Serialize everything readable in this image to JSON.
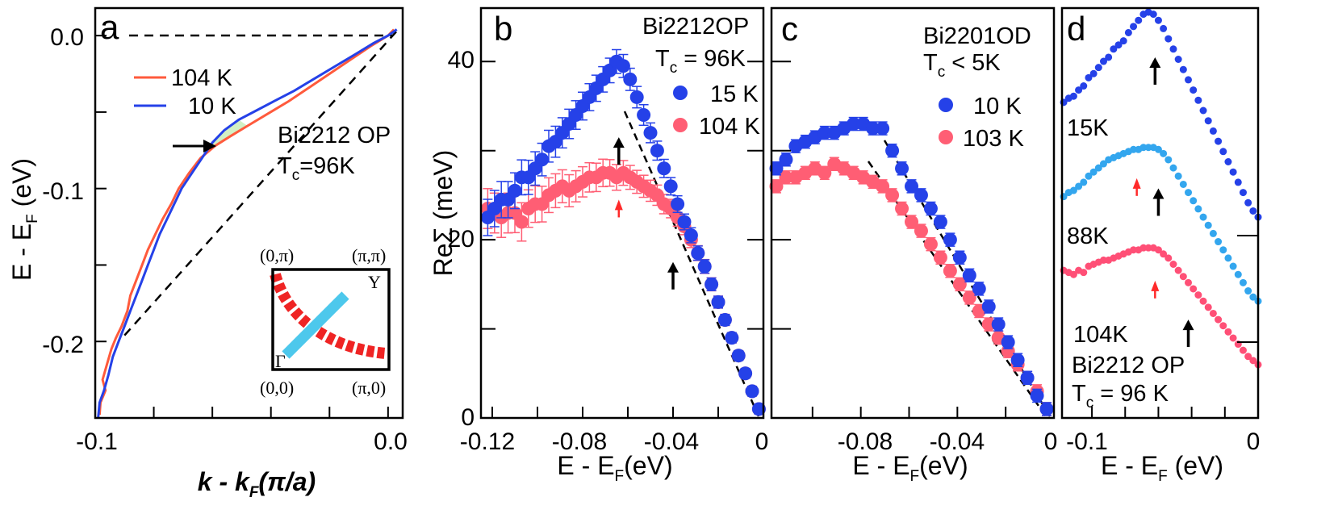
{
  "colors": {
    "blue": "#2541e8",
    "red": "#ff5e74",
    "red_line": "#ff5a3c",
    "light_blue": "#33a6ee",
    "pink": "#ff4f76",
    "inset_cyan": "#4dc8ec",
    "inset_red": "#ef2424",
    "shade": "#d2f0c4"
  },
  "chart_data": [
    {
      "panel": "a",
      "type": "line",
      "ylabel": "E - E",
      "ylabel_sub": "F",
      "ylabel_unit": " (eV)",
      "xlabel": "k - k",
      "xlabel_sub": "F",
      "xlabel_unit": "(π/a)",
      "xlim": [
        -0.1,
        0.005
      ],
      "ylim": [
        -0.25,
        0.018
      ],
      "xticks": [
        "-0.1",
        "0.0"
      ],
      "yticks": [
        "0.0",
        "-0.1",
        "-0.2"
      ],
      "annotation_line1": "Bi2212 OP",
      "annotation_tc": "T",
      "annotation_tc_sub": "c",
      "annotation_tc_val": "=96K",
      "series": [
        {
          "name": "104 K",
          "color": "#ff5a3c",
          "points": [
            [
              -0.0985,
              -0.248
            ],
            [
              -0.0982,
              -0.24
            ],
            [
              -0.0965,
              -0.232
            ],
            [
              -0.0975,
              -0.225
            ],
            [
              -0.096,
              -0.215
            ],
            [
              -0.0945,
              -0.205
            ],
            [
              -0.093,
              -0.198
            ],
            [
              -0.091,
              -0.19
            ],
            [
              -0.089,
              -0.18
            ],
            [
              -0.088,
              -0.17
            ],
            [
              -0.086,
              -0.16
            ],
            [
              -0.084,
              -0.15
            ],
            [
              -0.082,
              -0.14
            ],
            [
              -0.0795,
              -0.13
            ],
            [
              -0.077,
              -0.12
            ],
            [
              -0.074,
              -0.11
            ],
            [
              -0.0715,
              -0.1
            ],
            [
              -0.068,
              -0.09
            ],
            [
              -0.064,
              -0.08
            ],
            [
              -0.059,
              -0.072
            ],
            [
              -0.054,
              -0.066
            ],
            [
              -0.048,
              -0.059
            ],
            [
              -0.041,
              -0.051
            ],
            [
              -0.034,
              -0.043
            ],
            [
              -0.027,
              -0.034
            ],
            [
              -0.02,
              -0.025
            ],
            [
              -0.013,
              -0.016
            ],
            [
              -0.006,
              -0.007
            ],
            [
              0.0,
              0.0
            ],
            [
              0.002,
              0.004
            ]
          ]
        },
        {
          "name": "10 K",
          "color": "#2541e8",
          "points": [
            [
              -0.099,
              -0.25
            ],
            [
              -0.0985,
              -0.24
            ],
            [
              -0.097,
              -0.232
            ],
            [
              -0.0955,
              -0.222
            ],
            [
              -0.094,
              -0.21
            ],
            [
              -0.092,
              -0.2
            ],
            [
              -0.09,
              -0.19
            ],
            [
              -0.088,
              -0.18
            ],
            [
              -0.086,
              -0.17
            ],
            [
              -0.084,
              -0.16
            ],
            [
              -0.082,
              -0.15
            ],
            [
              -0.08,
              -0.14
            ],
            [
              -0.078,
              -0.13
            ],
            [
              -0.0755,
              -0.12
            ],
            [
              -0.073,
              -0.11
            ],
            [
              -0.0705,
              -0.1
            ],
            [
              -0.067,
              -0.09
            ],
            [
              -0.0635,
              -0.08
            ],
            [
              -0.06,
              -0.07
            ],
            [
              -0.056,
              -0.062
            ],
            [
              -0.051,
              -0.055
            ],
            [
              -0.045,
              -0.049
            ],
            [
              -0.039,
              -0.043
            ],
            [
              -0.032,
              -0.036
            ],
            [
              -0.025,
              -0.028
            ],
            [
              -0.018,
              -0.02
            ],
            [
              -0.011,
              -0.012
            ],
            [
              -0.005,
              -0.005
            ],
            [
              0.0,
              0.0
            ],
            [
              0.003,
              0.004
            ]
          ]
        }
      ],
      "bare_band": [
        [
          -0.09,
          -0.196
        ],
        [
          0.003,
          0.003
        ]
      ]
    },
    {
      "panel": "b",
      "type": "scatter",
      "ylabel": "ReΣ (meV)",
      "xlabel": "E - E",
      "xlabel_sub": "F",
      "xlabel_unit": "(eV)",
      "xlim": [
        -0.125,
        0.0
      ],
      "ylim": [
        0,
        46
      ],
      "xticks": [
        "-0.12",
        "-0.08",
        "-0.04",
        "0"
      ],
      "yticks": [
        "0",
        "20",
        "40"
      ],
      "annotation_line1": "Bi2212OP",
      "annotation_tc": "T",
      "annotation_tc_sub": "c",
      "annotation_tc_val": " = 96K",
      "series": [
        {
          "name": "15 K",
          "color": "#2541e8",
          "x": [
            -0.122,
            -0.119,
            -0.116,
            -0.113,
            -0.11,
            -0.107,
            -0.104,
            -0.101,
            -0.098,
            -0.095,
            -0.092,
            -0.089,
            -0.086,
            -0.083,
            -0.08,
            -0.077,
            -0.074,
            -0.071,
            -0.068,
            -0.065,
            -0.062,
            -0.059,
            -0.056,
            -0.053,
            -0.05,
            -0.047,
            -0.044,
            -0.041,
            -0.038,
            -0.035,
            -0.032,
            -0.029,
            -0.026,
            -0.023,
            -0.02,
            -0.017,
            -0.014,
            -0.011,
            -0.008,
            -0.005,
            -0.002
          ],
          "y": [
            22.5,
            23.5,
            24.5,
            24.5,
            25.5,
            27,
            27,
            28,
            29,
            30.5,
            31,
            32,
            33,
            34,
            35,
            36,
            37,
            38,
            39,
            40,
            39.5,
            38,
            36,
            34,
            32,
            30,
            28,
            26,
            24,
            22,
            20.5,
            18.5,
            17,
            15,
            13,
            11,
            9,
            7,
            5,
            3,
            1
          ]
        },
        {
          "name": "104 K",
          "color": "#ff5e74",
          "x": [
            -0.122,
            -0.119,
            -0.116,
            -0.113,
            -0.11,
            -0.107,
            -0.104,
            -0.101,
            -0.098,
            -0.095,
            -0.092,
            -0.089,
            -0.086,
            -0.083,
            -0.08,
            -0.077,
            -0.074,
            -0.071,
            -0.068,
            -0.065,
            -0.062,
            -0.059,
            -0.056,
            -0.053,
            -0.05,
            -0.047,
            -0.044,
            -0.041,
            -0.038,
            -0.035,
            -0.032,
            -0.029,
            -0.026,
            -0.023,
            -0.02,
            -0.017,
            -0.014,
            -0.011,
            -0.008,
            -0.005,
            -0.002
          ],
          "y": [
            23.5,
            23,
            22.5,
            23,
            23,
            22,
            23.5,
            24,
            24,
            25,
            25.5,
            26,
            25.5,
            26,
            26.5,
            27,
            27,
            27.5,
            27.5,
            27,
            27.5,
            27,
            26.5,
            26,
            25.5,
            25,
            24,
            23.5,
            22.5,
            21.5,
            20,
            18.5,
            17,
            15,
            13,
            11,
            9,
            7,
            5,
            3,
            1
          ]
        }
      ],
      "arrows": [
        {
          "x": -0.064,
          "y": 31.5,
          "color": "black"
        },
        {
          "x": -0.064,
          "y": 24.5,
          "color": "red"
        },
        {
          "x": -0.04,
          "y": 17.5,
          "color": "black"
        }
      ]
    },
    {
      "panel": "c",
      "type": "scatter",
      "xlabel": "E - E",
      "xlabel_sub": "F",
      "xlabel_unit": "(eV)",
      "xlim": [
        -0.117,
        0.0
      ],
      "ylim": [
        0,
        46
      ],
      "xticks": [
        "-0.08",
        "-0.04",
        "0"
      ],
      "annotation_line1": "Bi2201OD",
      "annotation_tc": "T",
      "annotation_tc_sub": "c",
      "annotation_tc_val": " < 5K",
      "series": [
        {
          "name": "10 K",
          "color": "#2541e8",
          "x": [
            -0.115,
            -0.111,
            -0.107,
            -0.103,
            -0.099,
            -0.095,
            -0.091,
            -0.087,
            -0.083,
            -0.079,
            -0.075,
            -0.071,
            -0.067,
            -0.063,
            -0.059,
            -0.055,
            -0.051,
            -0.047,
            -0.043,
            -0.039,
            -0.035,
            -0.031,
            -0.027,
            -0.023,
            -0.019,
            -0.015,
            -0.011,
            -0.007,
            -0.003
          ],
          "y": [
            28,
            29,
            30.5,
            31,
            31.5,
            32,
            32,
            32.5,
            33,
            33,
            32.5,
            32.5,
            30,
            28,
            26,
            25,
            23.5,
            22,
            20,
            18,
            16,
            14.5,
            12.5,
            10.5,
            8.5,
            6.5,
            4.5,
            2.5,
            1
          ]
        },
        {
          "name": "103 K",
          "color": "#ff5e74",
          "x": [
            -0.115,
            -0.111,
            -0.107,
            -0.103,
            -0.099,
            -0.095,
            -0.091,
            -0.087,
            -0.083,
            -0.079,
            -0.075,
            -0.071,
            -0.067,
            -0.063,
            -0.059,
            -0.055,
            -0.051,
            -0.047,
            -0.043,
            -0.039,
            -0.035,
            -0.031,
            -0.027,
            -0.023,
            -0.019,
            -0.015,
            -0.011,
            -0.007,
            -0.003
          ],
          "y": [
            26,
            27,
            27,
            27.5,
            28,
            27.5,
            28.5,
            28,
            27.5,
            27,
            26.5,
            26,
            25,
            23.5,
            22,
            21,
            19.5,
            18,
            16.5,
            15,
            13.5,
            12,
            10.5,
            9,
            7.5,
            6,
            4.5,
            3,
            1
          ]
        }
      ]
    },
    {
      "panel": "d",
      "type": "scatter",
      "xlabel": "E - E",
      "xlabel_sub": "F",
      "xlabel_unit": " (eV)",
      "xlim": [
        -0.118,
        0.0
      ],
      "ylim": [
        0,
        1
      ],
      "xticks": [
        "-0.1",
        "0"
      ],
      "annotation_line1": "Bi2212 OP",
      "annotation_tc": "T",
      "annotation_tc_sub": "c",
      "annotation_tc_val": " = 96 K",
      "series": [
        {
          "name": "15K",
          "color": "#2541e8",
          "x": [
            -0.117,
            -0.114,
            -0.111,
            -0.108,
            -0.105,
            -0.102,
            -0.099,
            -0.096,
            -0.093,
            -0.09,
            -0.087,
            -0.084,
            -0.081,
            -0.078,
            -0.075,
            -0.072,
            -0.069,
            -0.066,
            -0.063,
            -0.06,
            -0.057,
            -0.054,
            -0.051,
            -0.048,
            -0.045,
            -0.042,
            -0.039,
            -0.036,
            -0.033,
            -0.03,
            -0.027,
            -0.024,
            -0.021,
            -0.018,
            -0.015,
            -0.012,
            -0.009,
            -0.006,
            -0.003,
            0.0
          ],
          "y": [
            0.77,
            0.78,
            0.785,
            0.8,
            0.81,
            0.83,
            0.84,
            0.855,
            0.87,
            0.88,
            0.9,
            0.91,
            0.92,
            0.94,
            0.955,
            0.97,
            0.985,
            0.99,
            0.985,
            0.97,
            0.95,
            0.925,
            0.9,
            0.875,
            0.85,
            0.825,
            0.8,
            0.775,
            0.75,
            0.725,
            0.7,
            0.675,
            0.65,
            0.625,
            0.6,
            0.575,
            0.55,
            0.525,
            0.505,
            0.49
          ]
        },
        {
          "name": "88K",
          "color": "#33a6ee",
          "x": [
            -0.117,
            -0.114,
            -0.111,
            -0.108,
            -0.105,
            -0.102,
            -0.099,
            -0.096,
            -0.093,
            -0.09,
            -0.087,
            -0.084,
            -0.081,
            -0.078,
            -0.075,
            -0.072,
            -0.069,
            -0.066,
            -0.063,
            -0.06,
            -0.057,
            -0.054,
            -0.051,
            -0.048,
            -0.045,
            -0.042,
            -0.039,
            -0.036,
            -0.033,
            -0.03,
            -0.027,
            -0.024,
            -0.021,
            -0.018,
            -0.015,
            -0.012,
            -0.009,
            -0.006,
            -0.003,
            0.0
          ],
          "y": [
            0.54,
            0.55,
            0.555,
            0.565,
            0.575,
            0.59,
            0.6,
            0.61,
            0.62,
            0.63,
            0.635,
            0.64,
            0.645,
            0.65,
            0.655,
            0.655,
            0.66,
            0.66,
            0.66,
            0.655,
            0.645,
            0.63,
            0.61,
            0.59,
            0.57,
            0.55,
            0.53,
            0.51,
            0.49,
            0.47,
            0.45,
            0.43,
            0.41,
            0.39,
            0.37,
            0.35,
            0.33,
            0.31,
            0.295,
            0.285
          ]
        },
        {
          "name": "104K",
          "color": "#ff4f76",
          "x": [
            -0.117,
            -0.114,
            -0.111,
            -0.108,
            -0.105,
            -0.102,
            -0.099,
            -0.096,
            -0.093,
            -0.09,
            -0.087,
            -0.084,
            -0.081,
            -0.078,
            -0.075,
            -0.072,
            -0.069,
            -0.066,
            -0.063,
            -0.06,
            -0.057,
            -0.054,
            -0.051,
            -0.048,
            -0.045,
            -0.042,
            -0.039,
            -0.036,
            -0.033,
            -0.03,
            -0.027,
            -0.024,
            -0.021,
            -0.018,
            -0.015,
            -0.012,
            -0.009,
            -0.006,
            -0.003,
            0.0
          ],
          "y": [
            0.36,
            0.355,
            0.35,
            0.36,
            0.355,
            0.37,
            0.375,
            0.38,
            0.385,
            0.385,
            0.39,
            0.395,
            0.4,
            0.405,
            0.41,
            0.41,
            0.415,
            0.415,
            0.415,
            0.41,
            0.4,
            0.39,
            0.375,
            0.36,
            0.345,
            0.33,
            0.315,
            0.3,
            0.285,
            0.27,
            0.255,
            0.24,
            0.225,
            0.21,
            0.195,
            0.18,
            0.165,
            0.15,
            0.14,
            0.13
          ]
        }
      ],
      "arrows": [
        {
          "x": -0.062,
          "y": 0.88,
          "color": "black"
        },
        {
          "x": -0.073,
          "y": 0.585,
          "color": "red"
        },
        {
          "x": -0.06,
          "y": 0.56,
          "color": "black"
        },
        {
          "x": -0.062,
          "y": 0.335,
          "color": "red"
        },
        {
          "x": -0.042,
          "y": 0.24,
          "color": "black"
        }
      ]
    }
  ],
  "panel_labels": [
    "a",
    "b",
    "c",
    "d"
  ],
  "inset": {
    "corner_tl": "(0,π)",
    "corner_tr": "(π,π)",
    "corner_bl": "(0,0)",
    "corner_br": "(π,0)",
    "label_y": "Y",
    "label_gamma": "Γ"
  }
}
